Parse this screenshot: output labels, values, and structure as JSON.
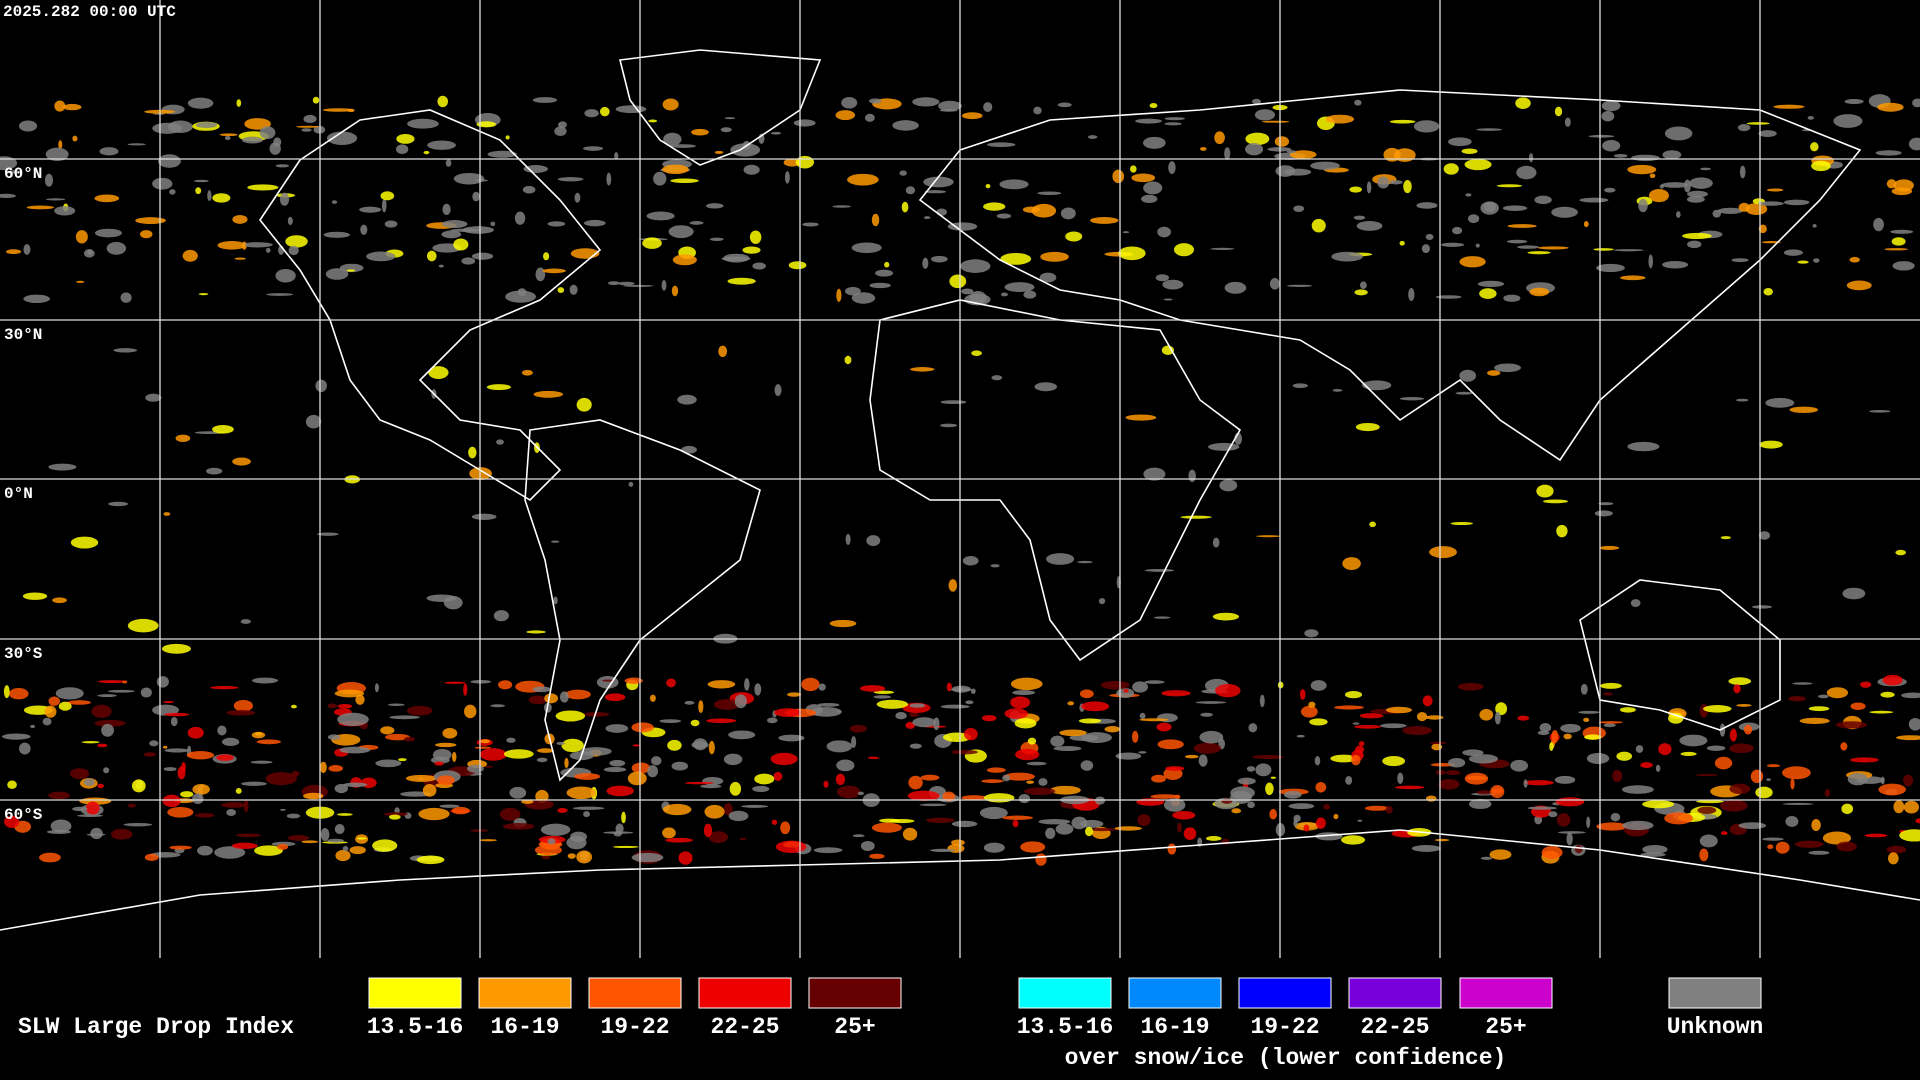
{
  "header": {
    "timestamp": "2025.282 00:00 UTC"
  },
  "map": {
    "latitude_labels": [
      "60°N",
      "30°N",
      "0°N",
      "30°S",
      "60°S"
    ]
  },
  "legend": {
    "title": "SLW Large Drop Index",
    "groups": [
      {
        "items": [
          {
            "label": "13.5-16",
            "color": "#ffff00"
          },
          {
            "label": "16-19",
            "color": "#ff9900"
          },
          {
            "label": "19-22",
            "color": "#ff5500"
          },
          {
            "label": "22-25",
            "color": "#ee0000"
          },
          {
            "label": "25+",
            "color": "#660000"
          }
        ]
      },
      {
        "items": [
          {
            "label": "13.5-16",
            "color": "#00ffff"
          },
          {
            "label": "16-19",
            "color": "#0088ff"
          },
          {
            "label": "19-22",
            "color": "#0000ff"
          },
          {
            "label": "22-25",
            "color": "#7700dd"
          },
          {
            "label": "25+",
            "color": "#cc00cc"
          }
        ],
        "caption": "over snow/ice (lower confidence)"
      },
      {
        "items": [
          {
            "label": "Unknown",
            "color": "#808080"
          }
        ]
      }
    ]
  }
}
